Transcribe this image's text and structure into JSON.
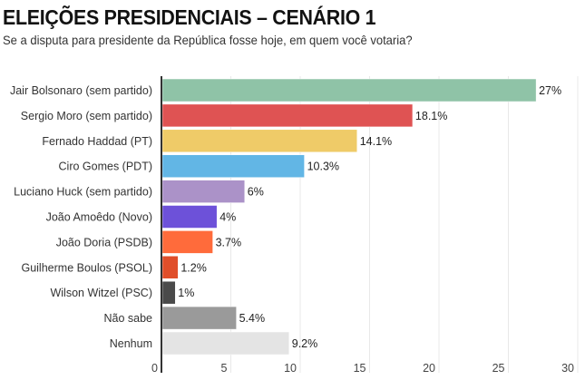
{
  "header": {
    "title": "ELEIÇÕES PRESIDENCIAIS – CENÁRIO 1",
    "subtitle": "Se a disputa para presidente da República fosse hoje, em quem você votaria?"
  },
  "chart_data": {
    "type": "bar",
    "orientation": "horizontal",
    "title": "ELEIÇÕES PRESIDENCIAIS – CENÁRIO 1",
    "subtitle": "Se a disputa para presidente da República fosse hoje, em quem você votaria?",
    "xlabel": "",
    "ylabel": "",
    "xlim": [
      0,
      30
    ],
    "xticks": [
      0,
      5,
      10,
      15,
      20,
      25,
      30
    ],
    "grid": true,
    "value_suffix": "%",
    "categories": [
      "Jair Bolsonaro (sem partido)",
      "Sergio Moro (sem partido)",
      "Fernado Haddad (PT)",
      "Ciro Gomes (PDT)",
      "Luciano Huck (sem partido)",
      "João Amoêdo (Novo)",
      "João Doria (PSDB)",
      "Guilherme Boulos (PSOL)",
      "Wilson Witzel (PSC)",
      "Não sabe",
      "Nenhum"
    ],
    "values": [
      27,
      18.1,
      14.1,
      10.3,
      6,
      4,
      3.7,
      1.2,
      1,
      5.4,
      9.2
    ],
    "value_labels": [
      "27%",
      "18.1%",
      "14.1%",
      "10.3%",
      "6%",
      "4%",
      "3.7%",
      "1.2%",
      "1%",
      "5.4%",
      "9.2%"
    ],
    "colors": [
      "#8fc3a7",
      "#df5353",
      "#efcb68",
      "#62b6e5",
      "#ab92c8",
      "#6d51d9",
      "#ff6b3b",
      "#e04e2a",
      "#4a4a4a",
      "#9a9a9a",
      "#e4e4e4"
    ]
  }
}
